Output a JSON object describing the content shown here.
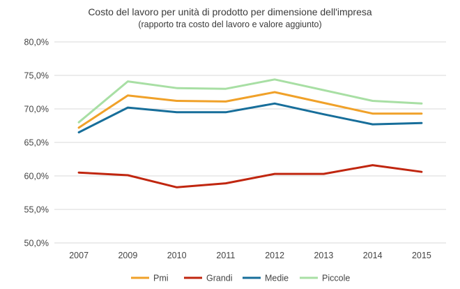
{
  "chart_data": {
    "type": "line",
    "title": "Costo del lavoro per unità di prodotto per dimensione dell'impresa",
    "subtitle": "(rapporto tra costo del lavoro e valore aggiunto)",
    "xlabel": "",
    "ylabel": "",
    "categories": [
      "2007",
      "2009",
      "2010",
      "2011",
      "2012",
      "2013",
      "2014",
      "2015"
    ],
    "ylim": [
      50,
      80
    ],
    "yticks": [
      50,
      55,
      60,
      65,
      70,
      75,
      80
    ],
    "ytick_labels": [
      "50,0%",
      "55,0%",
      "60,0%",
      "65,0%",
      "70,0%",
      "75,0%",
      "80,0%"
    ],
    "grid": true,
    "legend_position": "bottom",
    "series": [
      {
        "name": "Pmi",
        "color": "#F0A129",
        "values": [
          67.2,
          72.0,
          71.2,
          71.1,
          72.5,
          70.9,
          69.3,
          69.3
        ]
      },
      {
        "name": "Grandi",
        "color": "#C0260F",
        "values": [
          60.5,
          60.1,
          58.3,
          58.9,
          60.3,
          60.3,
          61.6,
          60.6
        ]
      },
      {
        "name": "Medie",
        "color": "#176E9A",
        "values": [
          66.5,
          70.2,
          69.5,
          69.5,
          70.8,
          69.2,
          67.7,
          67.9
        ]
      },
      {
        "name": "Piccole",
        "color": "#A8DFA4",
        "values": [
          68.0,
          74.1,
          73.1,
          73.0,
          74.4,
          72.8,
          71.2,
          70.8
        ]
      }
    ]
  }
}
